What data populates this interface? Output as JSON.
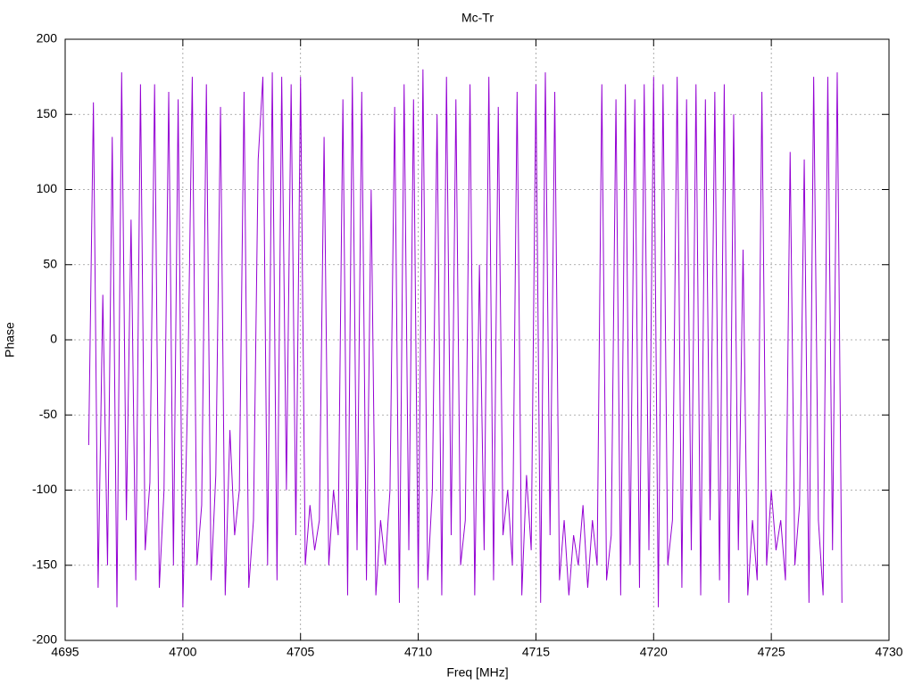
{
  "chart_data": {
    "type": "line",
    "title": "Mc-Tr",
    "x_label": "Freq [MHz]",
    "y_label": "Phase",
    "xlim": [
      4695,
      4730
    ],
    "xticks": [
      4695,
      4700,
      4705,
      4710,
      4715,
      4720,
      4725,
      4730
    ],
    "ylim": [
      -200,
      200
    ],
    "yticks": [
      -200,
      -150,
      -100,
      -50,
      0,
      50,
      100,
      150,
      200
    ],
    "grid": true,
    "series": [
      {
        "color": "#9400d3",
        "x": [
          4696,
          4696.2,
          4696.4,
          4696.6,
          4696.8,
          4697,
          4697.2,
          4697.4,
          4697.6,
          4697.8,
          4698,
          4698.2,
          4698.4,
          4698.6,
          4698.8,
          4699,
          4699.2,
          4699.4,
          4699.6,
          4699.8,
          4700,
          4700.2,
          4700.4,
          4700.6,
          4700.8,
          4701,
          4701.2,
          4701.4,
          4701.6,
          4701.8,
          4702,
          4702.2,
          4702.4,
          4702.6,
          4702.8,
          4703,
          4703.2,
          4703.4,
          4703.6,
          4703.8,
          4704,
          4704.2,
          4704.4,
          4704.6,
          4704.8,
          4705,
          4705.2,
          4705.4,
          4705.6,
          4705.8,
          4706,
          4706.2,
          4706.4,
          4706.6,
          4706.8,
          4707,
          4707.2,
          4707.4,
          4707.6,
          4707.8,
          4708,
          4708.2,
          4708.4,
          4708.6,
          4708.8,
          4709,
          4709.2,
          4709.4,
          4709.6,
          4709.8,
          4710,
          4710.2,
          4710.4,
          4710.6,
          4710.8,
          4711,
          4711.2,
          4711.4,
          4711.6,
          4711.8,
          4712,
          4712.2,
          4712.4,
          4712.6,
          4712.8,
          4713,
          4713.2,
          4713.4,
          4713.6,
          4713.8,
          4714,
          4714.2,
          4714.4,
          4714.6,
          4714.8,
          4715,
          4715.2,
          4715.4,
          4715.6,
          4715.8,
          4716,
          4716.2,
          4716.4,
          4716.6,
          4716.8,
          4717,
          4717.2,
          4717.4,
          4717.6,
          4717.8,
          4718,
          4718.2,
          4718.4,
          4718.6,
          4718.8,
          4719,
          4719.2,
          4719.4,
          4719.6,
          4719.8,
          4720,
          4720.2,
          4720.4,
          4720.6,
          4720.8,
          4721,
          4721.2,
          4721.4,
          4721.6,
          4721.8,
          4722,
          4722.2,
          4722.4,
          4722.6,
          4722.8,
          4723,
          4723.2,
          4723.4,
          4723.6,
          4723.8,
          4724,
          4724.2,
          4724.4,
          4724.6,
          4724.8,
          4725,
          4725.2,
          4725.4,
          4725.6,
          4725.8,
          4726,
          4726.2,
          4726.4,
          4726.6,
          4726.8,
          4727,
          4727.2,
          4727.4,
          4727.6,
          4727.8,
          4728
        ],
        "values": [
          -70,
          158,
          -165,
          30,
          -150,
          135,
          -178,
          178,
          -120,
          80,
          -160,
          170,
          -140,
          -95,
          170,
          -165,
          -100,
          165,
          -150,
          160,
          -178,
          -40,
          175,
          -150,
          -110,
          170,
          -160,
          -90,
          155,
          -170,
          -60,
          -130,
          -100,
          165,
          -165,
          -120,
          120,
          175,
          -150,
          178,
          -160,
          175,
          -100,
          170,
          -130,
          175,
          -150,
          -110,
          -140,
          -120,
          135,
          -150,
          -100,
          -130,
          160,
          -170,
          175,
          -140,
          165,
          -160,
          100,
          -170,
          -120,
          -150,
          -100,
          155,
          -175,
          170,
          -140,
          160,
          -165,
          180,
          -160,
          -100,
          150,
          -170,
          175,
          -130,
          160,
          -150,
          -120,
          170,
          -170,
          50,
          -140,
          175,
          -160,
          155,
          -130,
          -100,
          -150,
          165,
          -170,
          -90,
          -140,
          170,
          -175,
          178,
          -130,
          165,
          -160,
          -120,
          -170,
          -130,
          -150,
          -110,
          -165,
          -120,
          -150,
          170,
          -160,
          -130,
          160,
          -170,
          170,
          -150,
          160,
          -165,
          170,
          -140,
          175,
          -178,
          170,
          -150,
          -120,
          175,
          -165,
          160,
          -140,
          170,
          -170,
          160,
          -120,
          165,
          -160,
          170,
          -175,
          150,
          -140,
          60,
          -170,
          -120,
          -160,
          165,
          -150,
          -100,
          -140,
          -120,
          -160,
          125,
          -150,
          -110,
          120,
          -175,
          175,
          -120,
          -170,
          175,
          -140,
          178,
          -175
        ]
      }
    ]
  }
}
